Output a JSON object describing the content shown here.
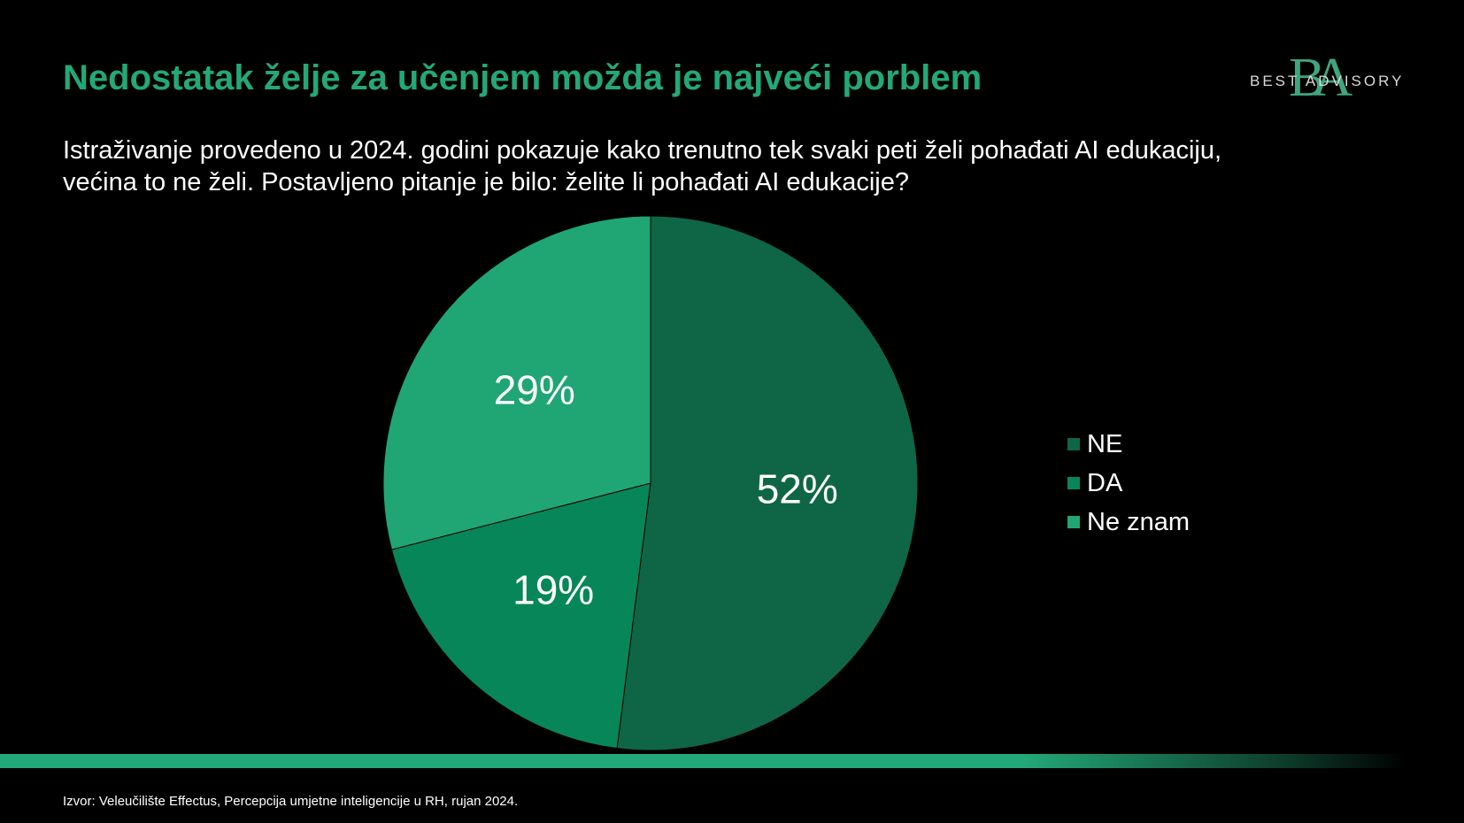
{
  "slide": {
    "title": "Nedostatak želje za učenjem možda je najveći  porblem",
    "subtitle_line1": "Istraživanje  provedeno  u 2024. godini pokazuje kako trenutno tek svaki peti želi pohađati AI edukaciju,",
    "subtitle_line2": "većina to ne želi. Postavljeno pitanje je bilo: želite li pohađati AI edukacije?",
    "source": "Izvor:  Veleučilište Effectus, Percepcija umjetne inteligencije u RH, rujan 2024."
  },
  "logo": {
    "monogram": "BA",
    "text": "BEST ADVISORY"
  },
  "chart_data": {
    "type": "pie",
    "categories": [
      "NE",
      "DA",
      "Ne znam"
    ],
    "values": [
      52,
      19,
      29
    ],
    "value_labels": [
      "52%",
      "19%",
      "29%"
    ],
    "colors": [
      "#0f6647",
      "#078659",
      "#1fa674"
    ],
    "start_angle_deg": 0,
    "direction": "clockwise",
    "legend_position": "right"
  },
  "colors": {
    "background": "#000000",
    "accent": "#23a878",
    "text": "#ffffff"
  }
}
